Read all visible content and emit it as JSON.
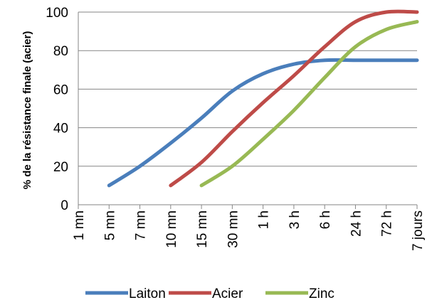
{
  "chart_data": {
    "type": "line",
    "ylabel": "% de la résistance finale (acier)",
    "xlabel": "",
    "title": "",
    "ylim": [
      0,
      100
    ],
    "yticks": [
      "0",
      "20",
      "40",
      "60",
      "80",
      "100"
    ],
    "categories": [
      "1 mn",
      "5 mn",
      "7 mn",
      "10 mn",
      "15 mn",
      "30 mn",
      "1 h",
      "3 h",
      "6 h",
      "24 h",
      "72 h",
      "7 jours"
    ],
    "grid": true,
    "legend_position": "bottom",
    "series": [
      {
        "name": "Laiton",
        "color": "#4a7ebb",
        "x": [
          1,
          2,
          3,
          4,
          5,
          6,
          7,
          8,
          9,
          10,
          11
        ],
        "values": [
          10,
          20,
          32,
          45,
          59,
          68,
          73,
          75,
          75,
          75,
          75
        ]
      },
      {
        "name": "Acier",
        "color": "#be4b48",
        "x": [
          3,
          4,
          5,
          6,
          7,
          8,
          9,
          10,
          11
        ],
        "values": [
          10,
          22,
          38,
          53,
          67,
          82,
          95,
          100,
          100
        ]
      },
      {
        "name": "Zinc",
        "color": "#98b954",
        "x": [
          4,
          5,
          6,
          7,
          8,
          9,
          10,
          11
        ],
        "values": [
          10,
          20,
          34,
          49,
          66,
          82,
          91,
          95
        ]
      }
    ]
  }
}
